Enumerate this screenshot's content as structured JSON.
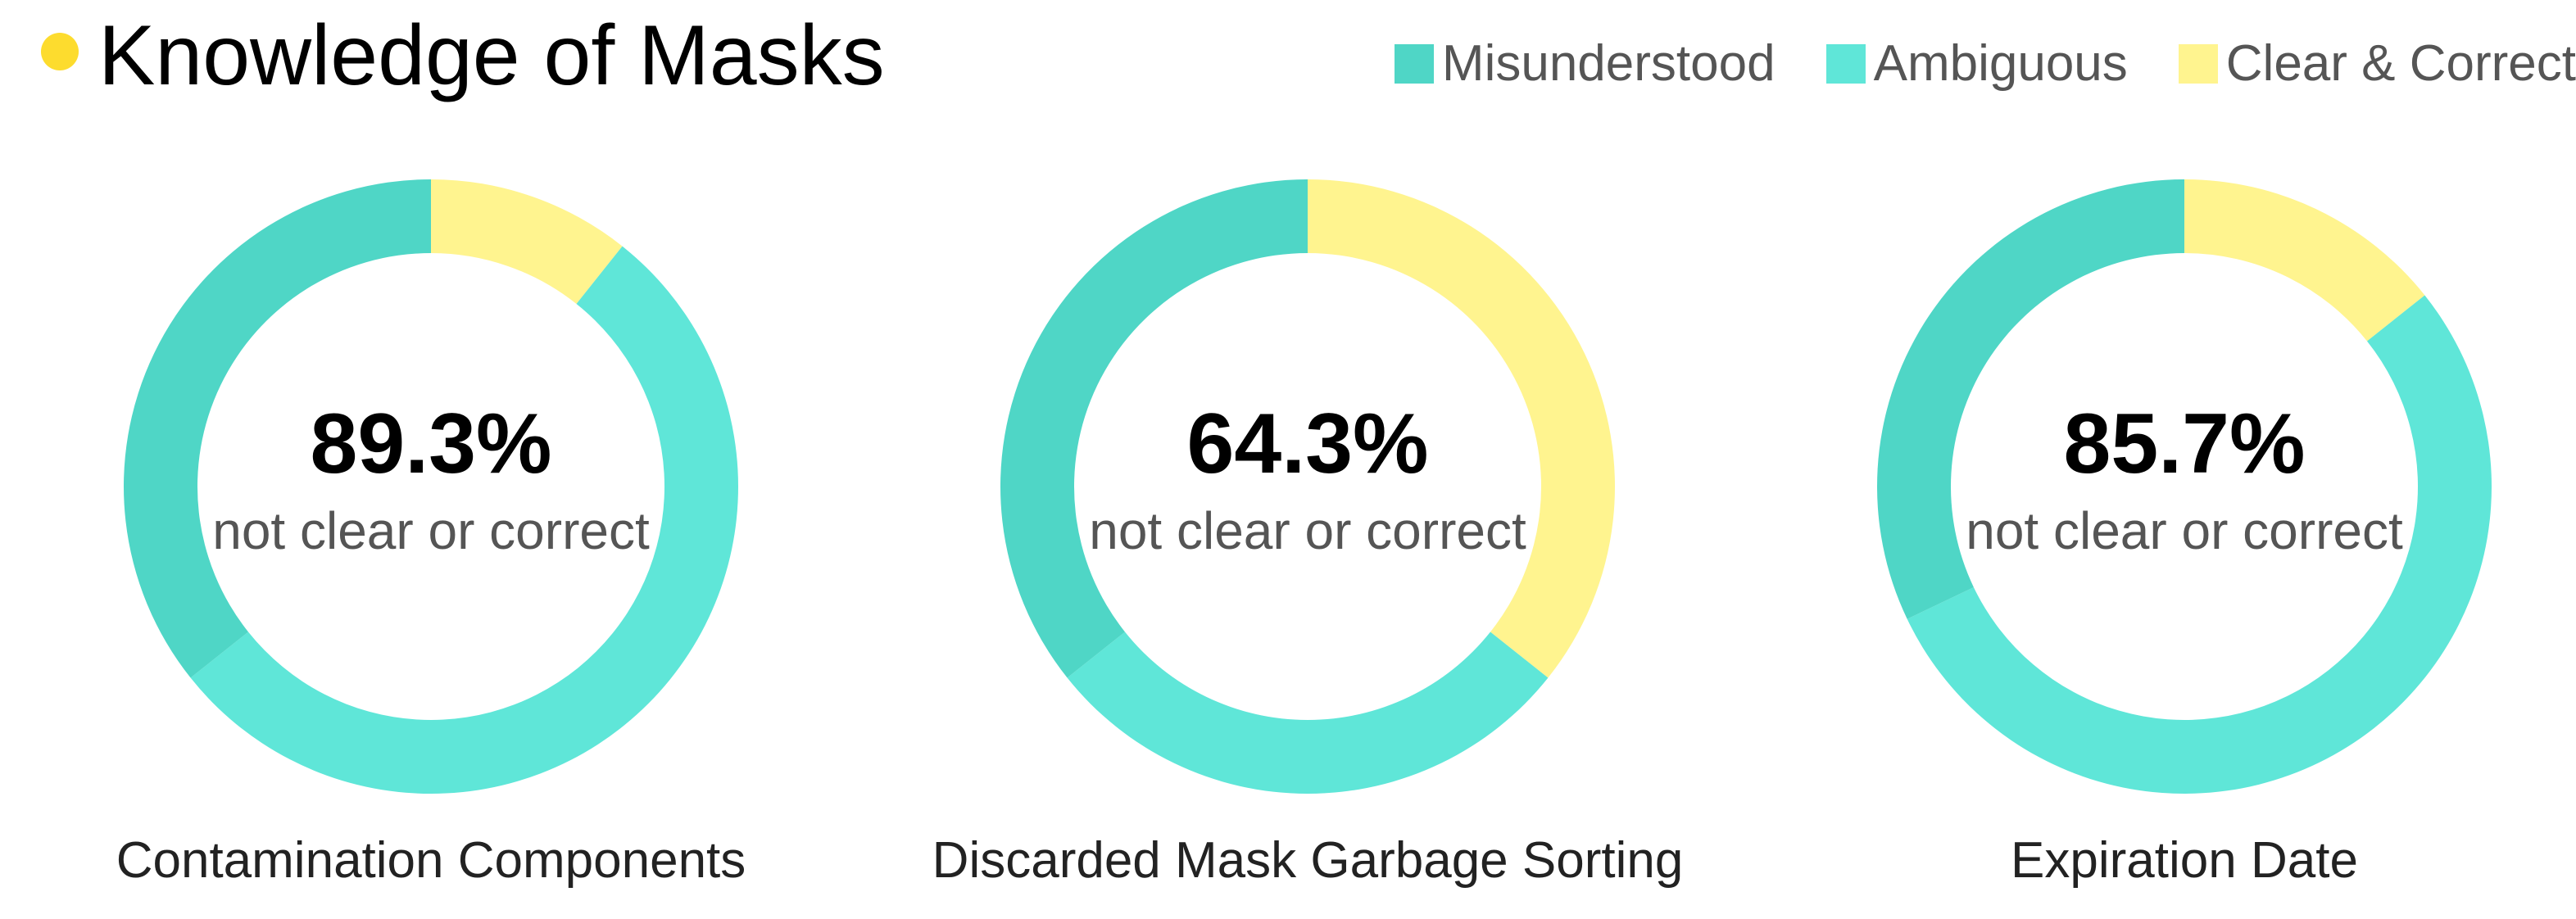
{
  "header": {
    "title": "Knowledge of Masks"
  },
  "colors": {
    "misunderstood": "#4fd6c6",
    "ambiguous": "#5fe6d8",
    "clear_correct": "#fff48f",
    "dot": "#fddc2e"
  },
  "legend": [
    {
      "label": "Misunderstood",
      "color": "#4fd6c6"
    },
    {
      "label": "Ambiguous",
      "color": "#5fe6d8"
    },
    {
      "label": "Clear & Correct",
      "color": "#fff48f"
    }
  ],
  "chart_data": [
    {
      "type": "pie",
      "variant": "donut",
      "title": "Contamination Components",
      "center_value": "89.3%",
      "center_label": "not clear or correct",
      "start": "top",
      "direction": "clockwise",
      "slices": [
        {
          "name": "Clear & Correct",
          "value": 10.7
        },
        {
          "name": "Ambiguous",
          "value": 53.6
        },
        {
          "name": "Misunderstood",
          "value": 35.7
        }
      ]
    },
    {
      "type": "pie",
      "variant": "donut",
      "title": "Discarded Mask Garbage Sorting",
      "center_value": "64.3%",
      "center_label": "not clear or correct",
      "start": "top",
      "direction": "clockwise",
      "slices": [
        {
          "name": "Clear & Correct",
          "value": 35.7
        },
        {
          "name": "Ambiguous",
          "value": 28.6
        },
        {
          "name": "Misunderstood",
          "value": 35.7
        }
      ]
    },
    {
      "type": "pie",
      "variant": "donut",
      "title": "Expiration Date",
      "center_value": "85.7%",
      "center_label": "not clear or correct",
      "start": "top",
      "direction": "clockwise",
      "slices": [
        {
          "name": "Clear & Correct",
          "value": 14.3
        },
        {
          "name": "Ambiguous",
          "value": 53.6
        },
        {
          "name": "Misunderstood",
          "value": 32.1
        }
      ]
    }
  ]
}
